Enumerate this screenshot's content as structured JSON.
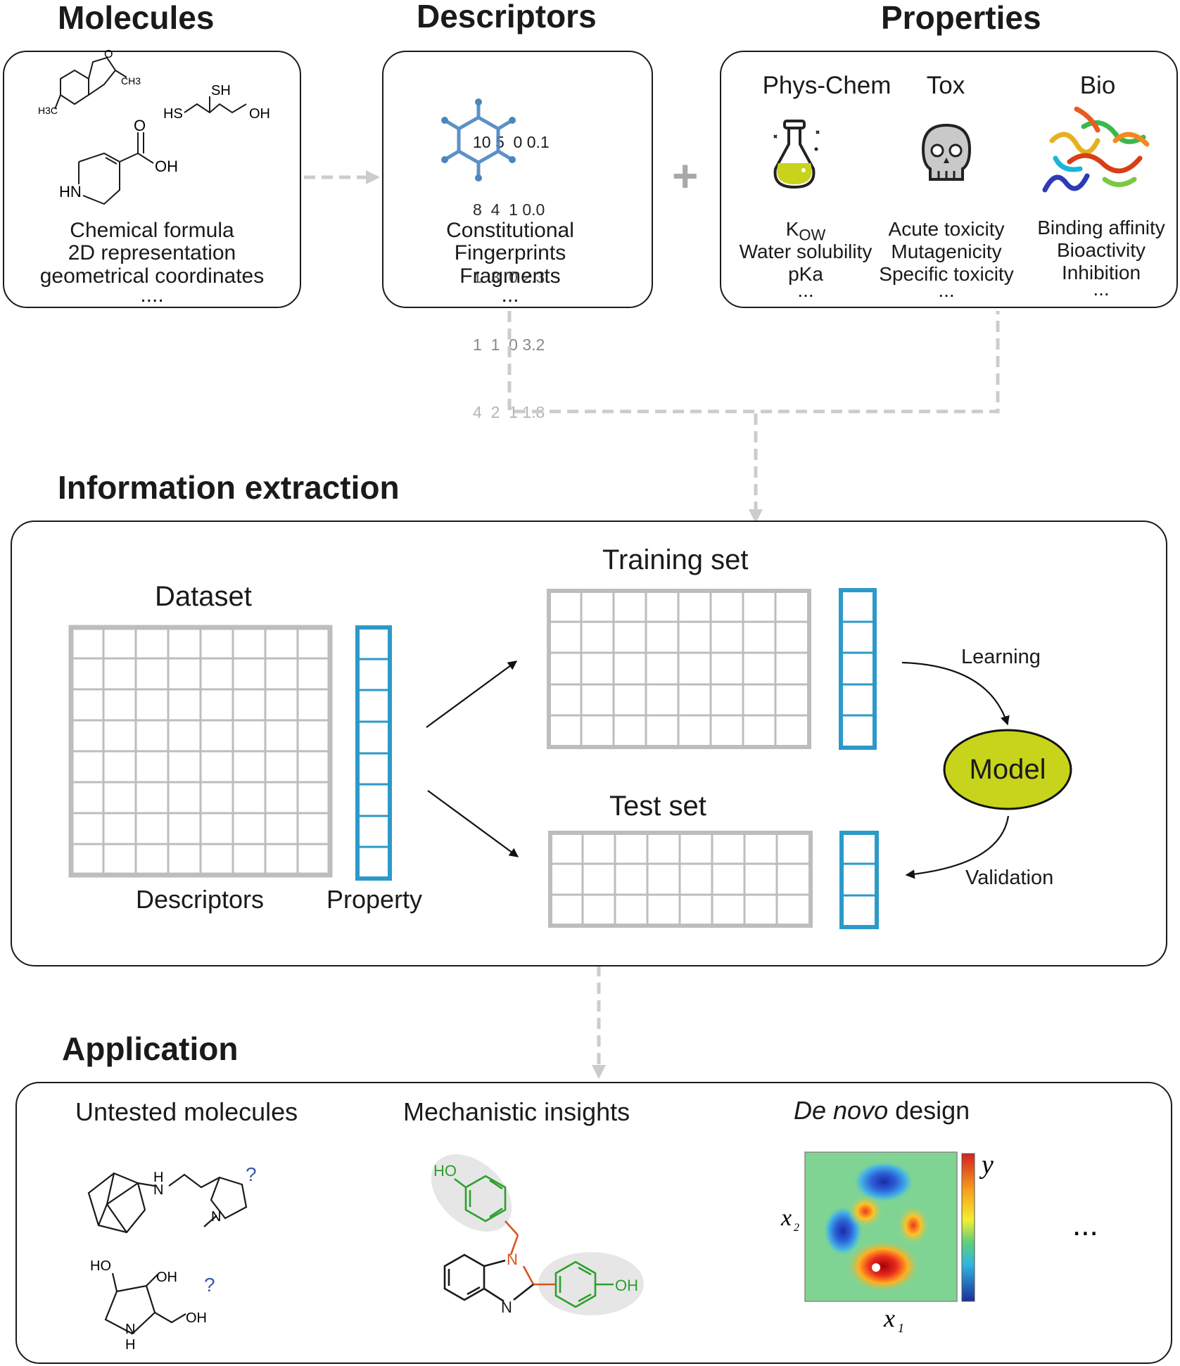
{
  "headers": {
    "molecules": "Molecules",
    "descriptors": "Descriptors",
    "properties": "Properties",
    "information_extraction": "Information extraction",
    "application": "Application"
  },
  "molecules_box": {
    "lines": [
      "Chemical formula",
      "2D representation",
      "geometrical coordinates",
      "...."
    ],
    "atom_labels": {
      "ch3": "CH3",
      "h3c": "H3C",
      "sh": "SH",
      "hs": "HS",
      "oh1": "OH",
      "o": "O",
      "oh2": "OH",
      "hn": "HN"
    }
  },
  "descriptors_box": {
    "lines": [
      "Constitutional",
      "Fingerprints",
      "Fragments",
      "..."
    ],
    "matrix_rows": [
      "10 5  0 0.1",
      "8  4  1 0.0",
      "1  3  0 2.3",
      "1  1  0 3.2",
      "4  2  1 1.8"
    ]
  },
  "plus_sign": "+",
  "properties_box": {
    "columns": [
      {
        "title": "Phys-Chem",
        "icon": "flask-icon",
        "items": [
          "KOW",
          "Water solubility",
          "pKa",
          "..."
        ],
        "k_main": "K",
        "k_sub": "OW"
      },
      {
        "title": "Tox",
        "icon": "skull-icon",
        "items": [
          "Acute toxicity",
          "Mutagenicity",
          "Specific toxicity",
          "..."
        ]
      },
      {
        "title": "Bio",
        "icon": "protein-icon",
        "items": [
          "Binding affinity",
          "Bioactivity",
          "Inhibition",
          "..."
        ]
      }
    ]
  },
  "extraction": {
    "dataset": "Dataset",
    "descriptors": "Descriptors",
    "property": "Property",
    "training_set": "Training set",
    "test_set": "Test set",
    "learning": "Learning",
    "model": "Model",
    "validation": "Validation"
  },
  "application_box": {
    "untested": "Untested molecules",
    "mechanistic": "Mechanistic insights",
    "denovo_italic": "De novo",
    "denovo_rest": " design",
    "question_mark": "?",
    "ellipsis": "...",
    "axis_y": "y",
    "axis_x1": "x",
    "axis_x1_sub": "1",
    "axis_x2": "x",
    "axis_x2_sub": "2",
    "labels": {
      "h_nh": "H",
      "n_nh": "N",
      "n_ring": "N",
      "ho_top": "HO",
      "oh_top": "OH",
      "oh_bot": "OH",
      "n_bot": "N",
      "h_bot": "H",
      "ho_green": "HO",
      "oh_green": "OH",
      "n_orange": "N",
      "n_benz": "N"
    }
  },
  "colors": {
    "grid_gray": "#bdbdbd",
    "property_blue": "#2b9ac8",
    "model_fill": "#c8d31c",
    "dashed_gray": "#cccccc",
    "descriptor_blue": "#4a86c0",
    "insight_green": "#2ca02c",
    "insight_orange": "#d9541e"
  }
}
